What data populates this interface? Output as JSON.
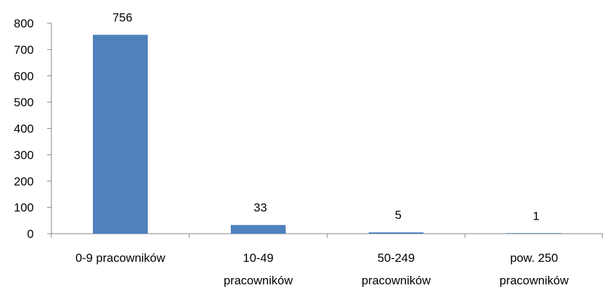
{
  "chart_data": {
    "type": "bar",
    "title": "",
    "xlabel": "",
    "ylabel": "",
    "categories": [
      "0-9 pracowników",
      "10-49 pracowników",
      "50-249 pracowników",
      "pow. 250 pracowników"
    ],
    "category_lines": [
      [
        "0-9 pracowników"
      ],
      [
        "10-49",
        "pracowników"
      ],
      [
        "50-249",
        "pracowników"
      ],
      [
        "pow. 250",
        "pracowników"
      ]
    ],
    "values": [
      756,
      33,
      5,
      1
    ],
    "data_labels": [
      "756",
      "33",
      "5",
      "1"
    ],
    "ylim": [
      0,
      800
    ],
    "yticks": [
      "0",
      "100",
      "200",
      "300",
      "400",
      "500",
      "600",
      "700",
      "800"
    ],
    "grid": false,
    "legend": "none",
    "colors": {
      "bar": "#4f81bd",
      "axis": "#868686"
    }
  }
}
